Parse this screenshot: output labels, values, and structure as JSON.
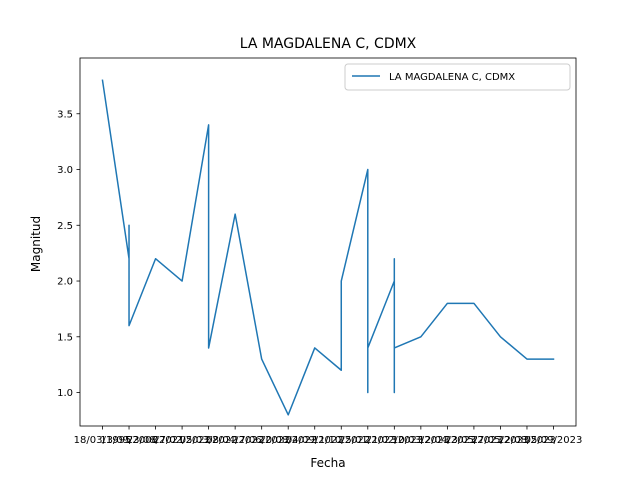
{
  "chart_data": {
    "type": "line",
    "title": "LA MAGDALENA C, CDMX",
    "xlabel": "Fecha",
    "ylabel": "Magnitud",
    "x_categories": [
      "18/03/1995",
      "13/09/2008",
      "23/08/2021",
      "27/02/2022",
      "05/03/2022",
      "08/04/2022",
      "17/06/2022",
      "20/08/2022",
      "04/09/2022",
      "11/10/2022",
      "25/01/2023",
      "21/02/2023",
      "10/03/2023",
      "12/04/2023",
      "23/05/2023",
      "27/05/2023",
      "22/08/2023",
      "05/09/2023"
    ],
    "ylim": [
      0.7,
      4.0
    ],
    "yticks": [
      1.0,
      1.5,
      2.0,
      2.5,
      3.0,
      3.5
    ],
    "ytick_labels": [
      "1.0",
      "1.5",
      "2.0",
      "2.5",
      "3.0",
      "3.5"
    ],
    "series": [
      {
        "name": "LA MAGDALENA C, CDMX",
        "color": "#1f77b4",
        "points": [
          [
            0,
            3.8
          ],
          [
            1,
            2.2
          ],
          [
            1,
            2.5
          ],
          [
            1,
            1.6
          ],
          [
            2,
            2.2
          ],
          [
            3,
            2.0
          ],
          [
            4,
            3.4
          ],
          [
            4,
            2.1
          ],
          [
            4,
            2.3
          ],
          [
            4,
            1.4
          ],
          [
            5,
            2.6
          ],
          [
            6,
            1.3
          ],
          [
            7,
            0.8
          ],
          [
            8,
            1.4
          ],
          [
            9,
            1.2
          ],
          [
            9,
            2.0
          ],
          [
            10,
            3.0
          ],
          [
            10,
            1.0
          ],
          [
            10,
            2.3
          ],
          [
            10,
            1.3
          ],
          [
            10,
            1.4
          ],
          [
            11,
            2.0
          ],
          [
            11,
            1.0
          ],
          [
            11,
            2.2
          ],
          [
            11,
            1.2
          ],
          [
            11,
            2.2
          ],
          [
            11,
            1.4
          ],
          [
            12,
            1.5
          ],
          [
            13,
            1.8
          ],
          [
            14,
            1.8
          ],
          [
            15,
            1.5
          ],
          [
            16,
            1.3
          ],
          [
            17,
            1.3
          ]
        ]
      }
    ],
    "grid": false,
    "legend_position": "upper right"
  }
}
